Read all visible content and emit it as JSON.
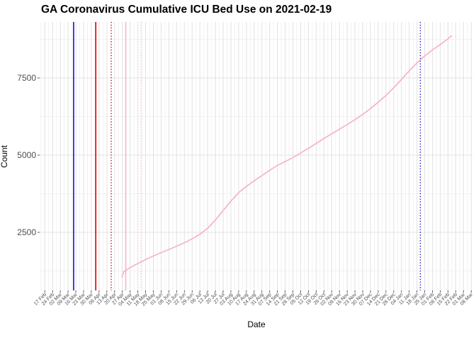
{
  "title": "GA Coronavirus Cumulative ICU Bed Use on 2021-02-19",
  "axes": {
    "x_label": "Date",
    "y_label": "Count"
  },
  "colors": {
    "background": "#ffffff",
    "line": "#f5abbe",
    "grid_major": "#e3e3e3",
    "grid_minor": "#eeeeee",
    "tick_text": "#4d4d4d",
    "tick_mark": "#333333",
    "vline_blue": "#1111cc",
    "vline_red": "#dd0000",
    "vline_pink": "#ffb3c6"
  },
  "chart_data": {
    "type": "line",
    "title": "GA Coronavirus Cumulative ICU Bed Use on 2021-02-19",
    "xlabel": "Date",
    "ylabel": "Count",
    "legend": "none",
    "grid": "major+minor",
    "ylim": [
      600,
      9300
    ],
    "y_ticks": [
      2500,
      5000,
      7500
    ],
    "y_minor_ticks": [
      1250,
      3750,
      6250,
      8750
    ],
    "x_tick_start": "2020-02-17",
    "x_tick_every_days": 7,
    "x_tick_labels": [
      "17 Feb",
      "24 Feb",
      "02 Mar",
      "09 Mar",
      "16 Mar",
      "23 Mar",
      "30 Mar",
      "06 Apr",
      "13 Apr",
      "20 Apr",
      "27 Apr",
      "04 May",
      "11 May",
      "18 May",
      "25 May",
      "01 Jun",
      "08 Jun",
      "15 Jun",
      "22 Jun",
      "29 Jun",
      "06 Jul",
      "13 Jul",
      "20 Jul",
      "27 Jul",
      "03 Aug",
      "10 Aug",
      "17 Aug",
      "24 Aug",
      "31 Aug",
      "07 Sep",
      "14 Sep",
      "21 Sep",
      "28 Sep",
      "05 Oct",
      "12 Oct",
      "19 Oct",
      "26 Oct",
      "02 Nov",
      "09 Nov",
      "16 Nov",
      "23 Nov",
      "30 Nov",
      "07 Dec",
      "14 Dec",
      "21 Dec",
      "28 Dec",
      "04 Jan",
      "11 Jan",
      "18 Jan",
      "25 Jan",
      "01 Feb",
      "08 Feb",
      "15 Feb",
      "22 Feb",
      "01 Mar",
      "08 Mar"
    ],
    "series": [
      {
        "name": "cumulative-icu-bed-use",
        "color": "#f5abbe",
        "points": [
          [
            "2020-04-26",
            1060
          ],
          [
            "2020-04-28",
            1230
          ],
          [
            "2020-05-04",
            1370
          ],
          [
            "2020-05-11",
            1500
          ],
          [
            "2020-05-18",
            1630
          ],
          [
            "2020-05-25",
            1740
          ],
          [
            "2020-06-01",
            1850
          ],
          [
            "2020-06-08",
            1950
          ],
          [
            "2020-06-15",
            2060
          ],
          [
            "2020-06-22",
            2170
          ],
          [
            "2020-06-29",
            2300
          ],
          [
            "2020-07-06",
            2450
          ],
          [
            "2020-07-13",
            2650
          ],
          [
            "2020-07-20",
            2920
          ],
          [
            "2020-07-27",
            3230
          ],
          [
            "2020-08-03",
            3530
          ],
          [
            "2020-08-10",
            3800
          ],
          [
            "2020-08-17",
            4000
          ],
          [
            "2020-08-24",
            4180
          ],
          [
            "2020-08-31",
            4350
          ],
          [
            "2020-09-07",
            4520
          ],
          [
            "2020-09-14",
            4680
          ],
          [
            "2020-09-21",
            4800
          ],
          [
            "2020-09-28",
            4930
          ],
          [
            "2020-10-05",
            5080
          ],
          [
            "2020-10-12",
            5230
          ],
          [
            "2020-10-19",
            5390
          ],
          [
            "2020-10-26",
            5550
          ],
          [
            "2020-11-02",
            5700
          ],
          [
            "2020-11-09",
            5850
          ],
          [
            "2020-11-16",
            6000
          ],
          [
            "2020-11-23",
            6160
          ],
          [
            "2020-11-30",
            6330
          ],
          [
            "2020-12-07",
            6520
          ],
          [
            "2020-12-14",
            6730
          ],
          [
            "2020-12-21",
            6950
          ],
          [
            "2020-12-28",
            7200
          ],
          [
            "2021-01-04",
            7470
          ],
          [
            "2021-01-11",
            7750
          ],
          [
            "2021-01-18",
            8000
          ],
          [
            "2021-01-25",
            8230
          ],
          [
            "2021-02-01",
            8420
          ],
          [
            "2021-02-08",
            8590
          ],
          [
            "2021-02-15",
            8780
          ],
          [
            "2021-02-18",
            8880
          ]
        ]
      }
    ],
    "vlines": [
      {
        "date": "2020-03-14",
        "color": "#1111cc",
        "style": "solid",
        "name": "vline-blue-solid"
      },
      {
        "date": "2020-04-03",
        "color": "#dd0000",
        "style": "solid",
        "name": "vline-red-solid"
      },
      {
        "date": "2020-04-17",
        "color": "#dd0000",
        "style": "dotted",
        "name": "vline-red-dotted"
      },
      {
        "date": "2020-04-30",
        "color": "#ffb3c6",
        "style": "solid",
        "name": "vline-pink-solid"
      },
      {
        "date": "2020-05-14",
        "color": "#ffb3c6",
        "style": "dotted",
        "name": "vline-pink-dotted"
      },
      {
        "date": "2021-01-21",
        "color": "#1111cc",
        "style": "dotted",
        "name": "vline-blue-dotted"
      }
    ]
  }
}
